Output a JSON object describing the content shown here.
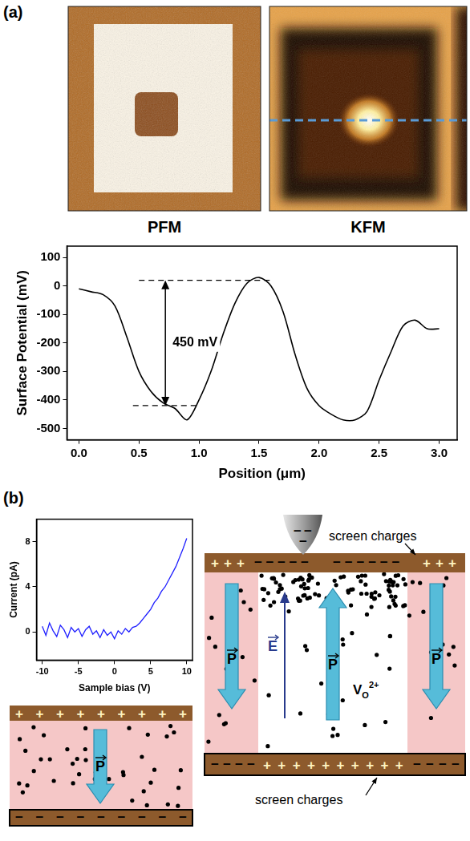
{
  "panel_labels": [
    "(a)",
    "(b)"
  ],
  "images": [
    {
      "label": "PFM"
    },
    {
      "label": "KFM"
    }
  ],
  "chart_data": [
    {
      "type": "line",
      "x_label": "Position (μm)",
      "y_label": "Surface Potential (mV)",
      "x": [
        0,
        0.1,
        0.2,
        0.3,
        0.4,
        0.5,
        0.6,
        0.7,
        0.8,
        0.9,
        1.0,
        1.1,
        1.2,
        1.3,
        1.4,
        1.5,
        1.6,
        1.7,
        1.8,
        1.9,
        2.0,
        2.1,
        2.2,
        2.3,
        2.4,
        2.5,
        2.6,
        2.7,
        2.8,
        2.9,
        3.0
      ],
      "values": [
        -10,
        -20,
        -30,
        -70,
        -180,
        -300,
        -370,
        -410,
        -430,
        -470,
        -400,
        -300,
        -170,
        -60,
        10,
        30,
        0,
        -90,
        -240,
        -360,
        -420,
        -450,
        -470,
        -470,
        -440,
        -330,
        -230,
        -140,
        -120,
        -150,
        -150
      ],
      "color": "#000000",
      "xlim": [
        -0.1,
        3.15
      ],
      "xticks": [
        {
          "value": 0,
          "label": "0.0"
        },
        {
          "value": 0.5,
          "label": "0.5"
        },
        {
          "value": 1,
          "label": "1.0"
        },
        {
          "value": 1.5,
          "label": "1.5"
        },
        {
          "value": 2,
          "label": "2.0"
        },
        {
          "value": 2.5,
          "label": "2.5"
        },
        {
          "value": 3,
          "label": "3.0"
        }
      ],
      "ylim": [
        -540,
        140
      ],
      "yticks": [
        -500,
        -400,
        -300,
        -200,
        -100,
        0,
        100
      ],
      "grid": false,
      "annotations": [
        {
          "text": "450 mV",
          "x": 0.72,
          "y_from": 20,
          "y_to": -420
        }
      ],
      "dashed_levels": [
        {
          "y": 20,
          "x": [
            0.5,
            1.6
          ]
        },
        {
          "y": -420,
          "x": [
            0.45,
            1.0
          ]
        }
      ]
    },
    {
      "type": "line",
      "x_label": "Sample bias (V)",
      "y_label": "Current (pA)",
      "x": [
        -10,
        -9.5,
        -9,
        -8.5,
        -8,
        -7.5,
        -7,
        -6.5,
        -6,
        -5.5,
        -5,
        -4.5,
        -4,
        -3.5,
        -3,
        -2.5,
        -2,
        -1.5,
        -1,
        -0.5,
        0,
        0.5,
        1,
        1.5,
        2,
        2.5,
        3,
        3.5,
        4,
        4.5,
        5,
        5.5,
        6,
        6.5,
        7,
        7.5,
        8,
        8.5,
        9,
        9.5,
        10
      ],
      "values": [
        0.5,
        -0.3,
        0.8,
        0.1,
        -0.4,
        0.6,
        0.2,
        -0.5,
        0.4,
        0.0,
        0.3,
        -0.4,
        0.2,
        0.5,
        -0.2,
        0.1,
        -0.5,
        0.2,
        -0.3,
        0.0,
        -0.6,
        0.1,
        -0.2,
        0.3,
        0.0,
        0.4,
        0.5,
        0.8,
        1.2,
        1.6,
        2.0,
        2.6,
        3.0,
        3.6,
        4.0,
        4.6,
        5.2,
        5.8,
        6.6,
        7.4,
        8.3
      ],
      "color": "#1f1fff",
      "xlim": [
        -10.8,
        10.8
      ],
      "xticks": [
        -10,
        -5,
        0,
        5,
        10
      ],
      "ylim": [
        -2.5,
        10
      ],
      "yticks": [
        0,
        4,
        8
      ],
      "grid": false
    }
  ],
  "diagram": {
    "screen_labels": [
      "screen charges",
      "screen charges"
    ],
    "polarization": "P",
    "field": "E",
    "vacancy": {
      "base": "V",
      "sub": "O",
      "sup": "2+"
    },
    "plus": "+",
    "minus": "−"
  }
}
